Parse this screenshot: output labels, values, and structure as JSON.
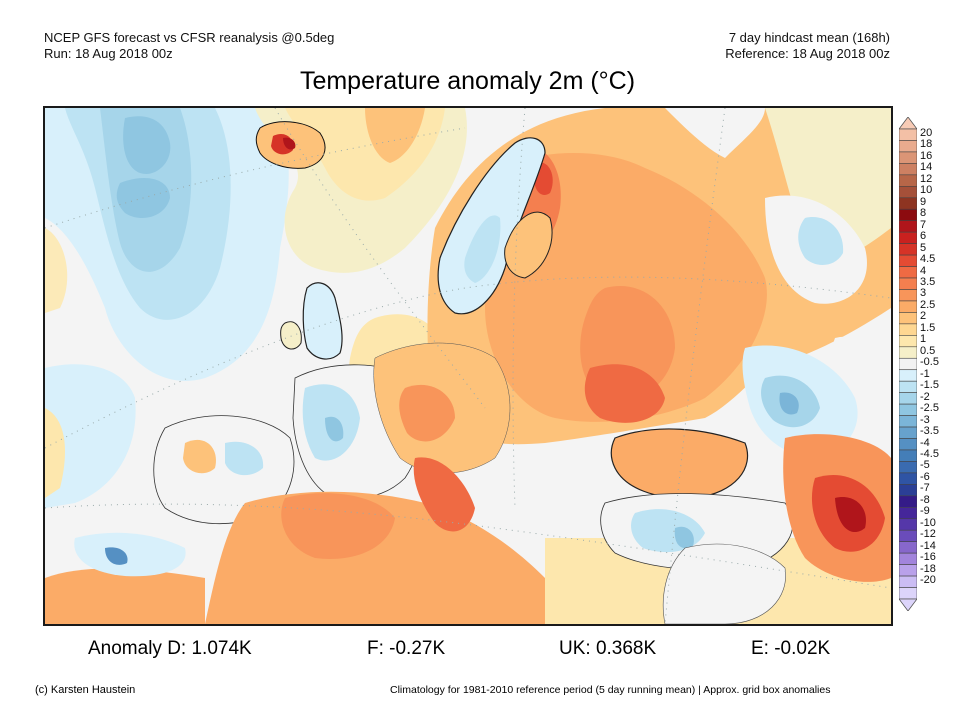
{
  "header": {
    "line1_left": "NCEP GFS forecast vs CFSR reanalysis @0.5deg",
    "line2_left": "Run: 18 Aug 2018 00z",
    "line1_right": "7 day hindcast mean (168h)",
    "line2_right": "Reference: 18 Aug 2018 00z"
  },
  "title": "Temperature anomaly 2m (°C)",
  "colorbar": {
    "unit": "°C",
    "levels": [
      "20",
      "18",
      "16",
      "14",
      "12",
      "10",
      "9",
      "8",
      "7",
      "6",
      "5",
      "4.5",
      "4",
      "3.5",
      "3",
      "2.5",
      "2",
      "1.5",
      "1",
      "0.5",
      "-0.5",
      "-1",
      "-1.5",
      "-2",
      "-2.5",
      "-3",
      "-3.5",
      "-4",
      "-4.5",
      "-5",
      "-6",
      "-7",
      "-8",
      "-9",
      "-10",
      "-12",
      "-14",
      "-16",
      "-18",
      "-20"
    ],
    "colors": [
      "#f3c0a6",
      "#e9ab8e",
      "#db9576",
      "#cd8062",
      "#b76648",
      "#a55039",
      "#8e3421",
      "#8c0b0f",
      "#b0151b",
      "#c9211f",
      "#d63327",
      "#e44b33",
      "#ef6a43",
      "#f47f4f",
      "#f8955a",
      "#fbab67",
      "#fdc27a",
      "#fed792",
      "#fde7ad",
      "#f5efc9",
      "#f2f2f2",
      "#d8f0fb",
      "#bde3f3",
      "#a6d5ea",
      "#8fc6e1",
      "#7bb5d8",
      "#67a2cd",
      "#5590c3",
      "#447eb8",
      "#3a6bb0",
      "#2f54a4",
      "#2b3f96",
      "#341b88",
      "#45269a",
      "#5537a9",
      "#6a4cba",
      "#8767cb",
      "#a284dc",
      "#b9a1ea",
      "#cbbdf4",
      "#dcd4fa"
    ],
    "over_color": "#f7cbb6",
    "under_color": "#dcd4fa"
  },
  "stats": {
    "germany": "Anomaly D: 1.074K",
    "france": "F: -0.27K",
    "uk": "UK: 0.368K",
    "spain": "E: -0.02K"
  },
  "footer": {
    "copyright": "(c) Karsten Haustein",
    "note": "Climatology for 1981-2010 reference period (5 day running mean) | Approx. grid box anomalies"
  },
  "map": {
    "region": "Europe",
    "variable": "2m temperature anomaly",
    "features": [
      {
        "name": "greenland-sea-cold-anomaly",
        "approx_value": -2.5
      },
      {
        "name": "iceland-warm-anomaly",
        "approx_value": 5
      },
      {
        "name": "fennoscandia-warm-anomaly",
        "approx_value": 4
      },
      {
        "name": "western-russia-warm-anomaly",
        "approx_value": 3
      },
      {
        "name": "iran-warm-anomaly",
        "approx_value": 6
      },
      {
        "name": "caucasus-cold-anomaly",
        "approx_value": -2
      },
      {
        "name": "turkey-cold-anomaly",
        "approx_value": -1.5
      },
      {
        "name": "france-cold-anomaly",
        "approx_value": -1
      },
      {
        "name": "mediterranean-warm-anomaly",
        "approx_value": 2.5
      }
    ]
  }
}
